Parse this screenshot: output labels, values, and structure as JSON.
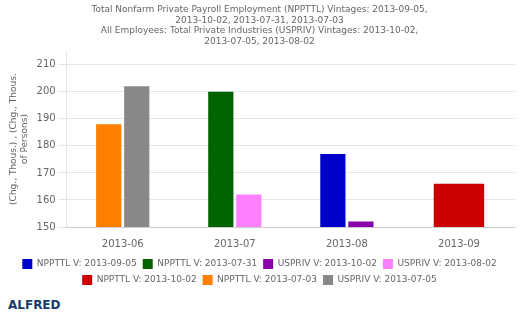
{
  "chart_data": {
    "type": "bar",
    "title": "Total Nonfarm Private Payroll Employment (NPPTTL) Vintages: 2013-09-05,\n2013-10-02, 2013-07-31, 2013-07-03\nAll Employees: Total Private Industries (USPRIV) Vintages: 2013-10-02,\n2013-07-05, 2013-08-02",
    "ylabel": "(Chg., Thous.) , (Chg., Thous.\nof Persons)",
    "categories": [
      "2013-06",
      "2013-07",
      "2013-08",
      "2013-09"
    ],
    "series": [
      {
        "name": "NPPTTL V: 2013-09-05",
        "color": "#0000cc",
        "values": [
          null,
          null,
          177,
          null
        ]
      },
      {
        "name": "NPPTTL V: 2013-07-31",
        "color": "#006400",
        "values": [
          null,
          200,
          null,
          null
        ]
      },
      {
        "name": "USPRIV V: 2013-10-02",
        "color": "#8800aa",
        "values": [
          null,
          null,
          152,
          null
        ]
      },
      {
        "name": "USPRIV V: 2013-08-02",
        "color": "#ff80ff",
        "values": [
          null,
          162,
          null,
          null
        ]
      },
      {
        "name": "NPPTTL V: 2013-10-02",
        "color": "#cc0000",
        "values": [
          null,
          null,
          null,
          166
        ]
      },
      {
        "name": "NPPTTL V: 2013-07-03",
        "color": "#ff8000",
        "values": [
          188,
          null,
          null,
          null
        ]
      },
      {
        "name": "USPRIV V: 2013-07-05",
        "color": "#888888",
        "values": [
          202,
          null,
          null,
          null
        ]
      }
    ],
    "ylim": [
      150,
      215
    ],
    "yticks": [
      150,
      160,
      170,
      180,
      190,
      200,
      210
    ],
    "grid": true,
    "legend": "bottom",
    "annotations": [
      "ALFRED"
    ]
  }
}
